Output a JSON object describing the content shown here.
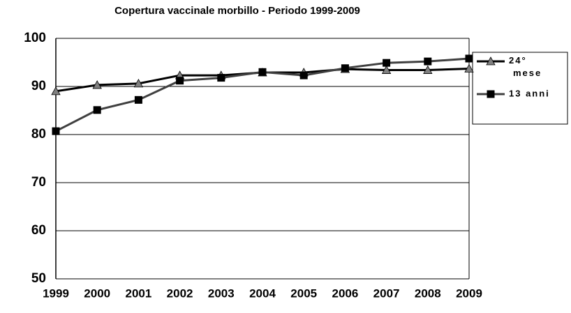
{
  "chart_data": {
    "type": "line",
    "title": "Copertura vaccinale morbillo - Periodo 1999-2009",
    "categories": [
      "1999",
      "2000",
      "2001",
      "2002",
      "2003",
      "2004",
      "2005",
      "2006",
      "2007",
      "2008",
      "2009"
    ],
    "series": [
      {
        "name": "24° mese",
        "color": "#000000",
        "marker": "triangle",
        "marker_color": "#808080",
        "values": [
          89.0,
          90.3,
          90.6,
          92.3,
          92.3,
          92.9,
          92.9,
          93.6,
          93.4,
          93.4,
          93.7
        ]
      },
      {
        "name": "13 anni",
        "color": "#404040",
        "marker": "square",
        "marker_color": "#000000",
        "values": [
          80.7,
          85.1,
          87.2,
          91.2,
          91.8,
          93.0,
          92.3,
          93.8,
          94.9,
          95.2,
          95.8
        ]
      }
    ],
    "ylim": [
      50,
      100
    ],
    "yticks": [
      50,
      60,
      70,
      80,
      90,
      100
    ],
    "grid": true,
    "legend": "right"
  }
}
